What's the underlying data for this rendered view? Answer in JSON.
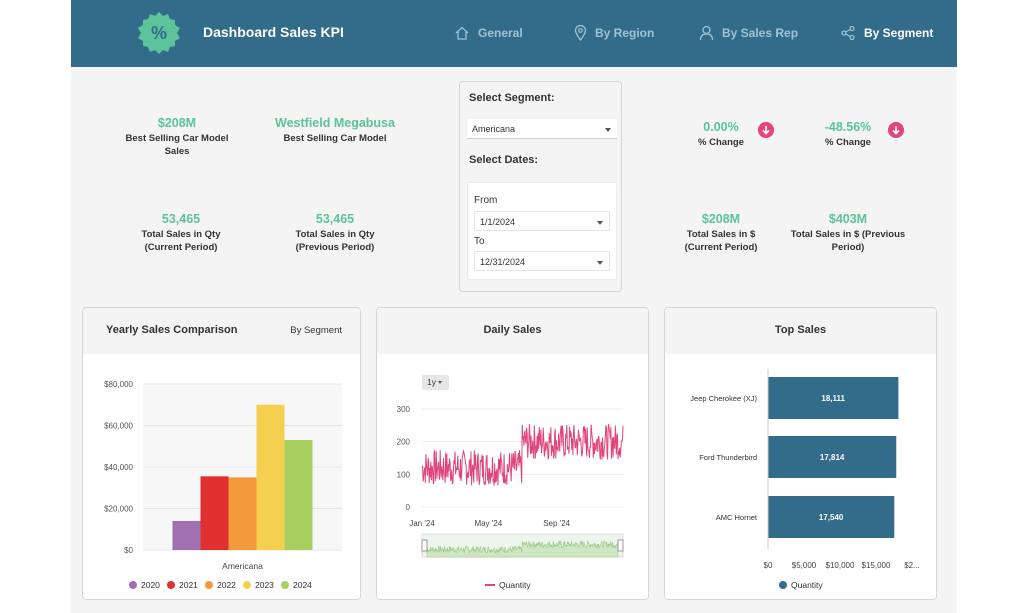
{
  "header": {
    "title": "Dashboard Sales KPI",
    "logo_symbol": "%",
    "nav": [
      {
        "label": "General",
        "icon": "home-icon"
      },
      {
        "label": "By Region",
        "icon": "map-pin-icon"
      },
      {
        "label": "By Sales Rep",
        "icon": "user-icon"
      },
      {
        "label": "By Segment",
        "icon": "share-nodes-icon"
      }
    ]
  },
  "kpis": {
    "best_model_sales": {
      "value": "$208M",
      "label_1": "Best Selling Car Model",
      "label_2": "Sales"
    },
    "best_model": {
      "value": "Westfield Megabusa",
      "label_1": "Best Selling Car Model"
    },
    "qty_current": {
      "value": "53,465",
      "label_1": "Total Sales in Qty",
      "label_2": "(Current Period)"
    },
    "qty_previous": {
      "value": "53,465",
      "label_1": "Total Sales in Qty",
      "label_2": "(Previous Period)"
    },
    "pct_change_1": {
      "value": "0.00%",
      "label_1": "% Change"
    },
    "pct_change_2": {
      "value": "-48.56%",
      "label_1": "% Change"
    },
    "usd_current": {
      "value": "$208M",
      "label_1": "Total Sales in $",
      "label_2": "(Current Period)"
    },
    "usd_previous": {
      "value": "$403M",
      "label_1": "Total Sales in $ (Previous",
      "label_2": "Period)"
    }
  },
  "filters": {
    "segment_title": "Select Segment:",
    "segment_value": "Americana",
    "dates_title": "Select Dates:",
    "from_label": "From",
    "from_value": "1/1/2024",
    "to_label": "To",
    "to_value": "12/31/2024"
  },
  "cards": {
    "yearly": {
      "title": "Yearly Sales Comparison",
      "subtitle": "By Segment"
    },
    "daily": {
      "title": "Daily Sales",
      "range_button": "1y"
    },
    "top": {
      "title": "Top Sales"
    }
  },
  "colors": {
    "header": "#336c8a",
    "accent_green": "#5cc39a",
    "down_badge": "#e6457a",
    "line": "#e0457b",
    "bar_blue": "#336c8a"
  },
  "chart_data": [
    {
      "type": "bar",
      "categories": [
        "Americana"
      ],
      "series": [
        {
          "name": "2020",
          "values": [
            14000
          ],
          "color": "#a070b0"
        },
        {
          "name": "2021",
          "values": [
            35500
          ],
          "color": "#e03030"
        },
        {
          "name": "2022",
          "values": [
            35000
          ],
          "color": "#f59a3a"
        },
        {
          "name": "2023",
          "values": [
            70000
          ],
          "color": "#f5d050"
        },
        {
          "name": "2024",
          "values": [
            53000
          ],
          "color": "#a8d060"
        }
      ],
      "ylim": [
        0,
        80000
      ],
      "yticks": [
        "$0",
        "$20,000",
        "$40,000",
        "$60,000",
        "$80,000"
      ],
      "grid": true,
      "legend": "bottom"
    },
    {
      "type": "line",
      "series": [
        {
          "name": "Quantity",
          "color": "#e0457b"
        }
      ],
      "ylim": [
        0,
        300
      ],
      "yticks": [
        "0",
        "100",
        "200",
        "300"
      ],
      "xticks": [
        "Jan '24",
        "May '24",
        "Sep '24"
      ],
      "x_range": [
        "2024-01-01",
        "2024-12-31"
      ],
      "approx_profile": [
        {
          "from": "2024-01-01",
          "to": "2024-06-30",
          "level": 120
        },
        {
          "from": "2024-07-01",
          "to": "2024-12-31",
          "level": 200
        }
      ],
      "legend": "bottom"
    },
    {
      "type": "bar",
      "orientation": "horizontal",
      "categories": [
        "Jeep Cherokee (XJ)",
        "Ford Thunderbird",
        "AMC Hornet"
      ],
      "values": [
        18111,
        17814,
        17540
      ],
      "value_labels": [
        "18,111",
        "17,814",
        "17,540"
      ],
      "series": [
        {
          "name": "Quantity",
          "color": "#336c8a"
        }
      ],
      "xticks": [
        "$0",
        "$5,000",
        "$10,000",
        "$15,000",
        "$2..."
      ],
      "xlim": [
        0,
        20000
      ],
      "legend": "bottom"
    }
  ]
}
